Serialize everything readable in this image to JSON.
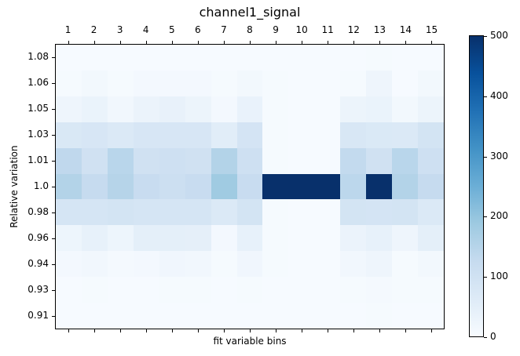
{
  "chart_data": {
    "type": "heatmap",
    "title": "channel1_signal",
    "xlabel": "fit variable bins",
    "ylabel": "Relative variation",
    "x_tick_labels": [
      "1",
      "2",
      "3",
      "4",
      "5",
      "6",
      "7",
      "8",
      "9",
      "10",
      "11",
      "12",
      "13",
      "14",
      "15"
    ],
    "x_tick_position": "top",
    "y_tick_labels": [
      "1.08",
      "1.06",
      "1.05",
      "1.03",
      "1.01",
      "1.0",
      "0.98",
      "0.96",
      "0.94",
      "0.93",
      "0.91"
    ],
    "colormap": "Blues",
    "colorbar": {
      "min": 0,
      "max": 500,
      "ticks": [
        0,
        100,
        200,
        300,
        400,
        500
      ]
    },
    "values": [
      [
        2,
        2,
        2,
        2,
        2,
        2,
        2,
        2,
        2,
        2,
        2,
        2,
        5,
        3,
        3
      ],
      [
        5,
        12,
        5,
        10,
        10,
        10,
        4,
        12,
        5,
        2,
        2,
        5,
        22,
        3,
        12
      ],
      [
        22,
        32,
        15,
        30,
        38,
        28,
        10,
        35,
        5,
        2,
        2,
        28,
        32,
        12,
        28
      ],
      [
        75,
        82,
        70,
        82,
        82,
        82,
        55,
        88,
        5,
        2,
        2,
        78,
        72,
        70,
        90
      ],
      [
        135,
        100,
        145,
        100,
        105,
        100,
        155,
        105,
        5,
        2,
        2,
        130,
        100,
        145,
        105
      ],
      [
        155,
        125,
        150,
        120,
        110,
        120,
        185,
        120,
        500,
        500,
        500,
        140,
        500,
        155,
        125
      ],
      [
        85,
        85,
        90,
        85,
        85,
        85,
        70,
        90,
        5,
        2,
        2,
        90,
        88,
        90,
        70
      ],
      [
        25,
        40,
        25,
        48,
        48,
        45,
        10,
        40,
        5,
        2,
        2,
        30,
        40,
        22,
        48
      ],
      [
        10,
        15,
        8,
        10,
        18,
        14,
        5,
        18,
        5,
        2,
        2,
        15,
        22,
        5,
        12
      ],
      [
        3,
        5,
        3,
        3,
        5,
        5,
        3,
        5,
        3,
        2,
        2,
        5,
        8,
        5,
        5
      ],
      [
        2,
        2,
        2,
        2,
        2,
        2,
        2,
        2,
        2,
        2,
        2,
        2,
        5,
        3,
        3
      ]
    ]
  },
  "colorbar_labels": [
    "500",
    "400",
    "300",
    "200",
    "100",
    "0"
  ]
}
